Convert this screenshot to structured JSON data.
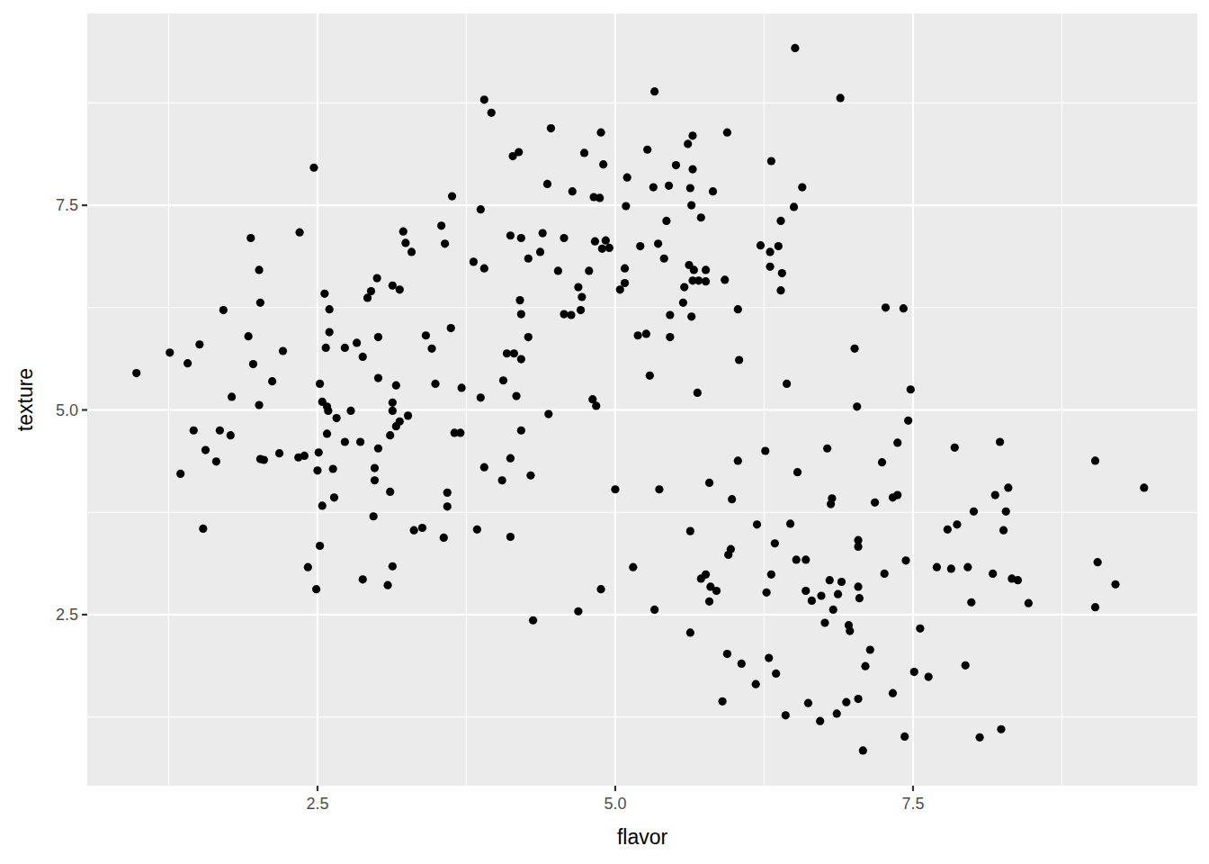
{
  "chart_data": {
    "type": "scatter",
    "x_label": "flavor",
    "y_label": "texture",
    "color": "#000000",
    "marker": "circle",
    "grid": true,
    "xlim": [
      0.567,
      9.887
    ],
    "ylim": [
      0.41,
      9.843
    ],
    "xticks": [
      2.5,
      {
        "value": 5,
        "label": "5.0"
      },
      7.5
    ],
    "yticks": [
      2.5,
      {
        "value": 5,
        "label": "5.0"
      },
      7.5
    ],
    "x": [
      0.98,
      1.26,
      1.41,
      1.51,
      1.35,
      1.46,
      1.56,
      1.65,
      1.54,
      1.68,
      1.71,
      1.78,
      1.77,
      1.92,
      1.94,
      1.96,
      2.01,
      2.02,
      2.01,
      2.02,
      2.05,
      2.12,
      2.18,
      2.21,
      2.34,
      2.35,
      2.39,
      2.42,
      2.47,
      2.49,
      2.5,
      2.51,
      2.52,
      2.52,
      2.54,
      2.54,
      2.56,
      2.57,
      2.58,
      2.58,
      2.59,
      2.6,
      2.6,
      2.63,
      2.64,
      2.66,
      2.73,
      2.73,
      2.78,
      2.83,
      2.86,
      2.88,
      2.88,
      2.92,
      2.95,
      2.97,
      2.98,
      2.98,
      3.0,
      3.01,
      3.01,
      3.01,
      3.09,
      3.11,
      3.11,
      3.13,
      3.13,
      3.13,
      3.13,
      3.16,
      3.16,
      3.19,
      3.19,
      3.22,
      3.24,
      3.26,
      3.29,
      3.31,
      3.38,
      3.41,
      3.46,
      3.49,
      3.54,
      3.56,
      3.57,
      3.59,
      3.59,
      3.62,
      3.63,
      3.65,
      3.7,
      3.71,
      3.81,
      3.84,
      3.87,
      3.87,
      3.9,
      3.9,
      3.9,
      3.96,
      4.05,
      4.06,
      4.09,
      4.12,
      4.12,
      4.12,
      4.14,
      4.15,
      4.17,
      4.19,
      4.2,
      4.21,
      4.21,
      4.21,
      4.21,
      4.27,
      4.27,
      4.29,
      4.31,
      4.37,
      4.39,
      4.43,
      4.44,
      4.46,
      4.52,
      4.57,
      4.57,
      4.63,
      4.64,
      4.69,
      4.69,
      4.72,
      4.71,
      4.74,
      4.78,
      4.81,
      4.82,
      4.83,
      4.84,
      4.87,
      4.88,
      4.88,
      4.89,
      4.9,
      4.92,
      4.95,
      5.0,
      5.04,
      5.08,
      5.08,
      5.09,
      5.1,
      5.15,
      5.19,
      5.21,
      5.26,
      5.27,
      5.29,
      5.32,
      5.33,
      5.33,
      5.36,
      5.37,
      5.41,
      5.43,
      5.45,
      5.46,
      5.46,
      5.51,
      5.57,
      5.58,
      5.61,
      5.62,
      5.63,
      5.63,
      5.63,
      5.64,
      5.64,
      5.65,
      5.65,
      5.65,
      5.66,
      5.69,
      5.7,
      5.72,
      5.72,
      5.76,
      5.76,
      5.76,
      5.79,
      5.79,
      5.8,
      5.82,
      5.85,
      5.9,
      5.92,
      5.94,
      5.94,
      5.95,
      5.97,
      5.98,
      6.03,
      6.03,
      6.04,
      6.06,
      6.18,
      6.19,
      6.22,
      6.26,
      6.27,
      6.29,
      6.3,
      6.3,
      6.31,
      6.31,
      6.34,
      6.35,
      6.37,
      6.39,
      6.39,
      6.4,
      6.43,
      6.44,
      6.47,
      6.5,
      6.52,
      6.53,
      6.51,
      6.57,
      6.6,
      6.6,
      6.62,
      6.65,
      6.72,
      6.73,
      6.76,
      6.78,
      6.8,
      6.81,
      6.82,
      6.83,
      6.86,
      6.87,
      6.89,
      6.9,
      6.94,
      6.96,
      6.97,
      7.01,
      7.03,
      7.04,
      7.04,
      7.04,
      7.04,
      7.05,
      7.08,
      7.1,
      7.14,
      7.18,
      7.24,
      7.26,
      7.27,
      7.33,
      7.33,
      7.37,
      7.37,
      7.42,
      7.43,
      7.44,
      7.46,
      7.48,
      7.51,
      7.56,
      7.63,
      7.7,
      7.79,
      7.82,
      7.85,
      7.87,
      7.96,
      7.94,
      7.99,
      8.01,
      8.06,
      8.17,
      8.19,
      8.23,
      8.24,
      8.26,
      8.28,
      8.3,
      8.33,
      8.38,
      8.47,
      9.03,
      9.03,
      9.05,
      9.2,
      9.44
    ],
    "values": [
      5.45,
      5.7,
      5.57,
      5.8,
      4.22,
      4.75,
      4.51,
      4.37,
      3.55,
      4.75,
      6.22,
      5.16,
      4.69,
      5.9,
      7.1,
      5.56,
      6.71,
      6.31,
      5.06,
      4.4,
      4.39,
      5.35,
      4.47,
      5.72,
      4.42,
      7.17,
      4.44,
      3.08,
      7.96,
      2.81,
      4.26,
      4.48,
      5.32,
      3.34,
      5.1,
      3.83,
      6.42,
      5.76,
      4.71,
      5.04,
      4.99,
      6.23,
      5.95,
      4.28,
      3.93,
      4.9,
      5.76,
      4.61,
      4.99,
      5.82,
      4.61,
      5.65,
      2.93,
      6.37,
      6.45,
      3.7,
      4.14,
      4.29,
      6.61,
      5.89,
      5.39,
      4.53,
      2.86,
      4.0,
      4.69,
      3.09,
      6.52,
      5.09,
      4.99,
      5.3,
      4.8,
      6.47,
      4.86,
      7.18,
      7.04,
      4.93,
      6.93,
      3.53,
      3.56,
      5.91,
      5.75,
      5.32,
      7.25,
      3.44,
      7.03,
      3.99,
      3.82,
      6.0,
      7.61,
      4.72,
      4.72,
      5.27,
      6.81,
      3.54,
      7.45,
      5.15,
      6.73,
      8.79,
      4.3,
      8.63,
      4.14,
      5.36,
      5.69,
      7.13,
      4.41,
      3.45,
      8.1,
      5.69,
      5.17,
      8.15,
      6.34,
      4.75,
      7.1,
      6.17,
      5.62,
      6.85,
      5.89,
      4.2,
      2.43,
      6.93,
      7.16,
      7.76,
      4.95,
      8.44,
      6.7,
      7.1,
      6.17,
      6.16,
      7.67,
      6.5,
      2.54,
      6.38,
      6.22,
      8.14,
      6.7,
      5.13,
      7.6,
      7.06,
      5.05,
      7.59,
      8.39,
      2.81,
      6.97,
      8.0,
      7.07,
      6.98,
      4.03,
      6.47,
      6.73,
      6.55,
      7.49,
      7.84,
      3.08,
      5.91,
      7.0,
      5.93,
      8.18,
      5.42,
      7.72,
      8.89,
      2.56,
      7.03,
      4.03,
      6.85,
      7.31,
      7.74,
      5.89,
      6.16,
      7.99,
      6.31,
      6.5,
      8.25,
      6.77,
      7.71,
      3.52,
      2.28,
      7.5,
      6.14,
      8.35,
      7.94,
      6.58,
      6.71,
      5.21,
      6.58,
      7.35,
      2.94,
      2.99,
      6.57,
      6.71,
      4.11,
      2.66,
      2.84,
      7.67,
      2.79,
      1.44,
      6.59,
      8.39,
      2.02,
      3.23,
      3.3,
      3.91,
      4.38,
      6.23,
      5.61,
      1.9,
      1.65,
      3.6,
      7.01,
      4.5,
      2.77,
      1.97,
      6.93,
      6.75,
      2.99,
      8.04,
      3.37,
      1.78,
      7.0,
      6.46,
      7.31,
      6.67,
      1.27,
      5.32,
      3.61,
      7.48,
      3.17,
      4.24,
      9.42,
      7.72,
      3.17,
      2.79,
      1.42,
      2.67,
      1.2,
      2.73,
      2.4,
      4.53,
      2.92,
      3.85,
      3.92,
      2.56,
      1.29,
      2.75,
      8.81,
      2.9,
      1.43,
      2.37,
      2.3,
      5.75,
      5.04,
      3.41,
      3.33,
      2.84,
      1.47,
      2.7,
      0.84,
      1.87,
      2.07,
      3.87,
      4.36,
      3.0,
      6.25,
      3.93,
      1.54,
      3.96,
      4.6,
      6.24,
      1.01,
      3.16,
      4.87,
      5.25,
      1.8,
      2.33,
      1.74,
      3.08,
      3.54,
      3.06,
      4.54,
      3.6,
      3.08,
      1.88,
      2.65,
      3.76,
      1.0,
      3.0,
      3.96,
      4.61,
      1.1,
      3.53,
      3.76,
      4.05,
      2.94,
      2.92,
      2.64,
      2.59,
      4.38,
      3.14,
      2.87,
      4.05
    ]
  }
}
